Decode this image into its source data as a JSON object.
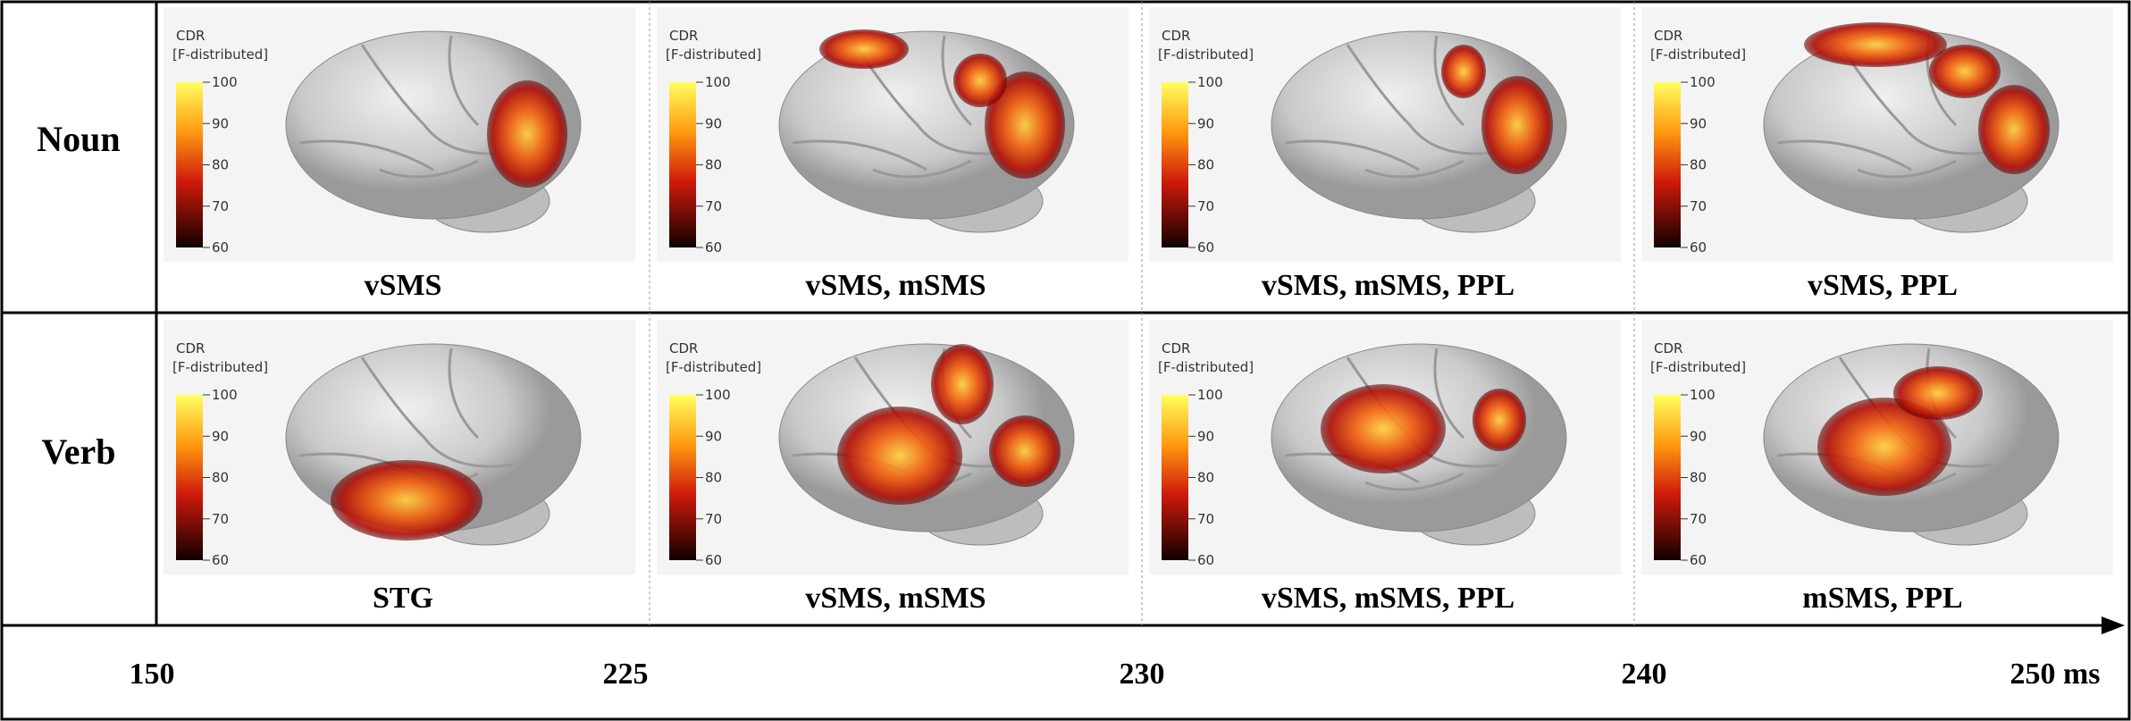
{
  "colorbar": {
    "title": "CDR",
    "subtitle": "[F-distributed]",
    "ticks": [
      "100",
      "90",
      "80",
      "70",
      "60"
    ]
  },
  "rows": [
    {
      "label": "Noun",
      "panels": [
        "vSMS",
        "vSMS, mSMS",
        "vSMS, mSMS, PPL",
        "vSMS, PPL"
      ]
    },
    {
      "label": "Verb",
      "panels": [
        "STG",
        "vSMS, mSMS",
        "vSMS, mSMS, PPL",
        "mSMS, PPL"
      ]
    }
  ],
  "timeline": [
    "150",
    "225",
    "230",
    "240",
    "250 ms"
  ]
}
